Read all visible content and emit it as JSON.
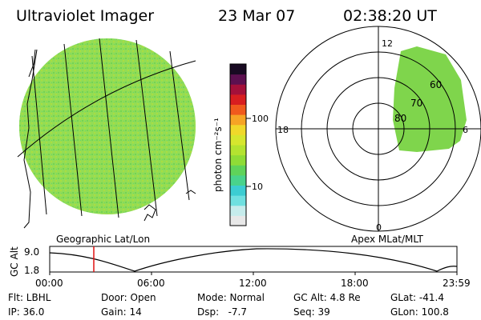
{
  "header": {
    "title": "Ultraviolet Imager",
    "date": "23 Mar 07",
    "time": "02:38:20 UT"
  },
  "colorbar": {
    "unit_label": "photon cm⁻²s⁻¹",
    "ticks": [
      "100",
      "10"
    ],
    "colors": [
      "#e8e8e8",
      "#c6ecec",
      "#6fe0e0",
      "#3ccdd2",
      "#49d38c",
      "#5fd35a",
      "#8fdc36",
      "#b4e330",
      "#d6e62e",
      "#f0d82a",
      "#f6a425",
      "#f05a1d",
      "#d81e20",
      "#a4103a",
      "#5c1050",
      "#180a22"
    ]
  },
  "left_panel": {
    "caption": "Geographic Lat/Lon",
    "image_fill": "#8ad64e"
  },
  "right_panel": {
    "caption": "Apex MLat/MLT",
    "mlt_labels": {
      "top": "12",
      "left": "18",
      "right": "6",
      "bottom": "0"
    },
    "mlat_labels": [
      "60",
      "70",
      "80"
    ],
    "image_fill": "#7fd54c"
  },
  "altitude_plot": {
    "ylabel": "GC Alt",
    "y_ticks": [
      "9.0",
      "1.8"
    ],
    "x_ticks": [
      "00:00",
      "06:00",
      "12:00",
      "18:00",
      "23:59"
    ],
    "marker_color": "#e01010"
  },
  "status": {
    "flt": "Flt: LBHL",
    "door": "Door: Open",
    "mode": "Mode: Normal",
    "gc_alt": "GC Alt: 4.8 Re",
    "glat": "GLat: -41.4",
    "ip": "IP: 36.0",
    "gain": "Gain: 14",
    "dsp": "Dsp:   -7.7",
    "seq": "Seq: 39",
    "glon": "GLon: 100.8"
  }
}
